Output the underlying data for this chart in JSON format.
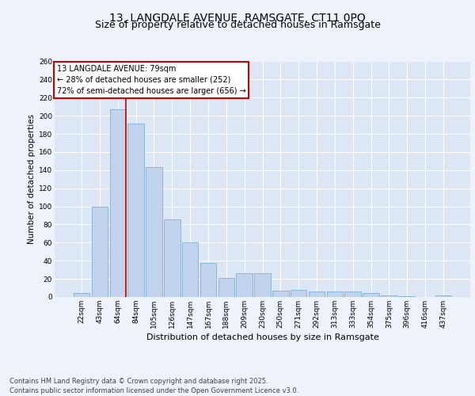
{
  "title": "13, LANGDALE AVENUE, RAMSGATE, CT11 0PQ",
  "subtitle": "Size of property relative to detached houses in Ramsgate",
  "xlabel": "Distribution of detached houses by size in Ramsgate",
  "ylabel": "Number of detached properties",
  "bar_color": "#c2d4ed",
  "bar_edge_color": "#7fafd4",
  "bg_color": "#dce6f5",
  "fig_bg": "#edf2fb",
  "grid_color": "#ffffff",
  "categories": [
    "22sqm",
    "43sqm",
    "64sqm",
    "84sqm",
    "105sqm",
    "126sqm",
    "147sqm",
    "167sqm",
    "188sqm",
    "209sqm",
    "230sqm",
    "250sqm",
    "271sqm",
    "292sqm",
    "313sqm",
    "333sqm",
    "354sqm",
    "375sqm",
    "396sqm",
    "416sqm",
    "437sqm"
  ],
  "values": [
    4,
    100,
    207,
    191,
    143,
    86,
    60,
    38,
    21,
    26,
    26,
    7,
    8,
    6,
    6,
    6,
    4,
    2,
    1,
    0,
    2
  ],
  "vline_color": "#cc0000",
  "vline_bin": 2,
  "annotation_text": "13 LANGDALE AVENUE: 79sqm\n← 28% of detached houses are smaller (252)\n72% of semi-detached houses are larger (656) →",
  "ann_box_color": "#ffffff",
  "ann_border_color": "#cc0000",
  "ylim": [
    0,
    260
  ],
  "yticks": [
    0,
    20,
    40,
    60,
    80,
    100,
    120,
    140,
    160,
    180,
    200,
    220,
    240,
    260
  ],
  "footer_text": "Contains HM Land Registry data © Crown copyright and database right 2025.\nContains public sector information licensed under the Open Government Licence v3.0.",
  "title_fontsize": 10,
  "subtitle_fontsize": 9,
  "xlabel_fontsize": 8,
  "ylabel_fontsize": 7.5,
  "tick_fontsize": 6.5,
  "ann_fontsize": 7,
  "footer_fontsize": 6
}
